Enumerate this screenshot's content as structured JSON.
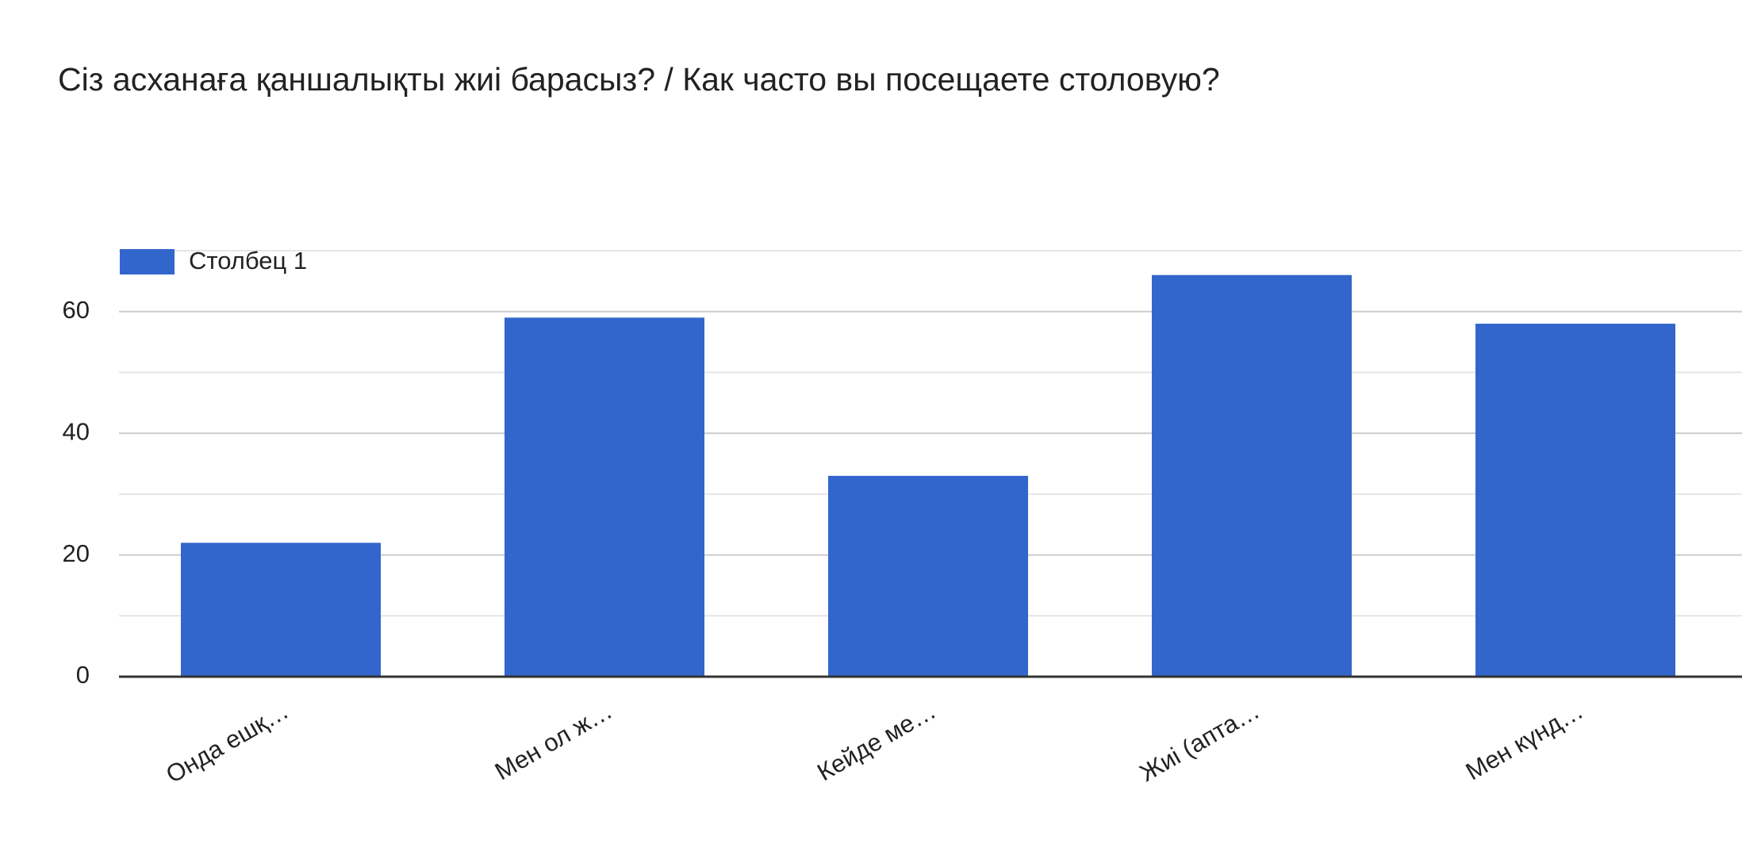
{
  "chart_data": {
    "type": "bar",
    "title": "Сіз асханаға қаншалықты жиі барасыз? / Как часто вы посещаете столовую?",
    "categories": [
      "Онда ешқ…",
      "Мен ол ж…",
      "Кейде ме…",
      "Жиі (апта…",
      "Мен күнд…"
    ],
    "series": [
      {
        "name": "Столбец 1",
        "color": "#3366cc",
        "values": [
          22,
          59,
          33,
          66,
          58
        ]
      }
    ],
    "ylim": [
      0,
      70
    ],
    "yticks": [
      0,
      20,
      40,
      60
    ],
    "minor_yticks": [
      10,
      30,
      50,
      70
    ],
    "grid": true,
    "legend": "top-left"
  }
}
